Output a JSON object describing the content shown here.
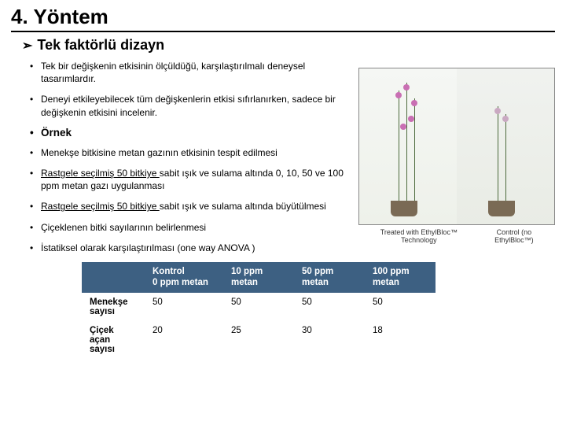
{
  "title": "4. Yöntem",
  "section": "Tek faktörlü dizayn",
  "arrow": "➢",
  "bullets_top": [
    {
      "html": "Tek bir değişkenin etkisinin ölçüldüğü, karşılaştırılmalı deneysel tasarımlardır."
    },
    {
      "html": "Deneyi etkileyebilecek tüm değişkenlerin etkisi sıfırlanırken, sadece bir değişkenin etkisini incelenir."
    }
  ],
  "ornek": "Örnek",
  "bullets_bottom": [
    {
      "html": "Menekşe bitkisine metan gazının etkisinin tespit edilmesi"
    },
    {
      "html": "<span class='underline'>Rastgele seçilmiş 50 bitkiye </span>sabit ışık ve sulama altında 0, 10, 50 ve 100 ppm metan gazı uygulanması"
    },
    {
      "html": "<span class='underline'>Rastgele seçilmiş 50 bitkiye </span>sabit ışık ve sulama altında büyütülmesi"
    },
    {
      "html": "Çiçeklenen bitki sayılarının belirlenmesi"
    },
    {
      "html": "İstatiksel olarak karşılaştırılması (one way ANOVA )"
    }
  ],
  "image": {
    "caption_left": "Treated with EthylBloc™ Technology",
    "caption_right": "Control (no EthylBloc™)",
    "flower_color_left": "#c96fb3",
    "flower_color_right": "#caa9c2"
  },
  "table": {
    "header_bg": "#3d6082",
    "header_fg": "#ffffff",
    "columns": [
      "",
      "Kontrol\n0 ppm metan",
      "10 ppm\nmetan",
      "50 ppm\nmetan",
      "100 ppm\nmetan"
    ],
    "rows": [
      {
        "label": "Menekşe sayısı",
        "values": [
          "50",
          "50",
          "50",
          "50"
        ]
      },
      {
        "label": "Çiçek açan sayısı",
        "values": [
          "20",
          "25",
          "30",
          "18"
        ]
      }
    ]
  }
}
